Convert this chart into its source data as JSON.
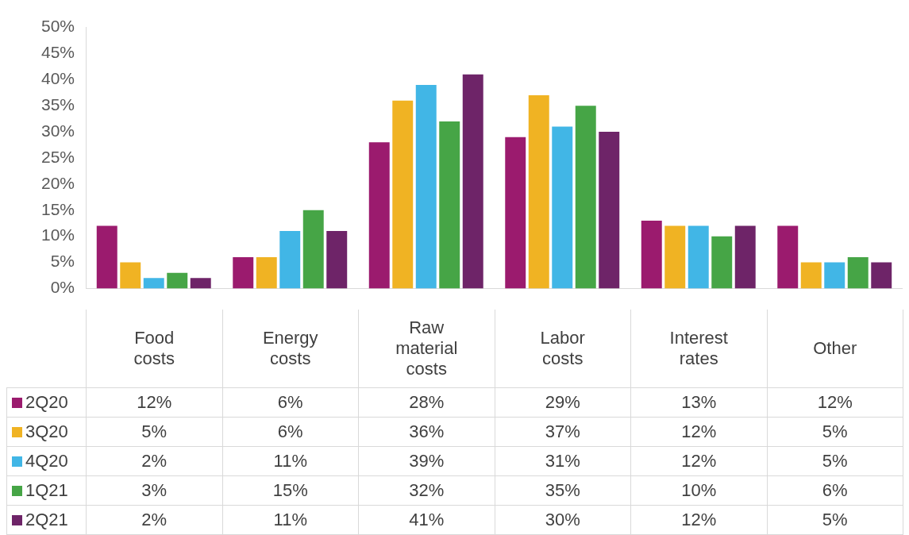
{
  "chart_data": {
    "type": "bar",
    "categories": [
      "Food costs",
      "Energy costs",
      "Raw material costs",
      "Labor costs",
      "Interest rates",
      "Other"
    ],
    "series": [
      {
        "name": "2Q20",
        "color": "#9b1b6e",
        "values": [
          12,
          6,
          28,
          29,
          13,
          12
        ],
        "value_labels": [
          "12%",
          "6%",
          "28%",
          "29%",
          "13%",
          "12%"
        ]
      },
      {
        "name": "3Q20",
        "color": "#f0b323",
        "values": [
          5,
          6,
          36,
          37,
          12,
          5
        ],
        "value_labels": [
          "5%",
          "6%",
          "36%",
          "37%",
          "12%",
          "5%"
        ]
      },
      {
        "name": "4Q20",
        "color": "#41b6e6",
        "values": [
          2,
          11,
          39,
          31,
          12,
          5
        ],
        "value_labels": [
          "2%",
          "11%",
          "39%",
          "31%",
          "12%",
          "5%"
        ]
      },
      {
        "name": "1Q21",
        "color": "#46a546",
        "values": [
          3,
          15,
          32,
          35,
          10,
          6
        ],
        "value_labels": [
          "3%",
          "15%",
          "32%",
          "35%",
          "10%",
          "6%"
        ]
      },
      {
        "name": "2Q21",
        "color": "#6e2468",
        "values": [
          2,
          11,
          41,
          30,
          12,
          5
        ],
        "value_labels": [
          "2%",
          "11%",
          "41%",
          "30%",
          "12%",
          "5%"
        ]
      }
    ],
    "ylim": [
      0,
      50
    ],
    "yticks": [
      {
        "value": 0,
        "label": "0%"
      },
      {
        "value": 5,
        "label": "5%"
      },
      {
        "value": 10,
        "label": "10%"
      },
      {
        "value": 15,
        "label": "15%"
      },
      {
        "value": 20,
        "label": "20%"
      },
      {
        "value": 25,
        "label": "25%"
      },
      {
        "value": 30,
        "label": "30%"
      },
      {
        "value": 35,
        "label": "35%"
      },
      {
        "value": 40,
        "label": "40%"
      },
      {
        "value": 45,
        "label": "45%"
      },
      {
        "value": 50,
        "label": "50%"
      }
    ],
    "legend": "bottom left"
  }
}
